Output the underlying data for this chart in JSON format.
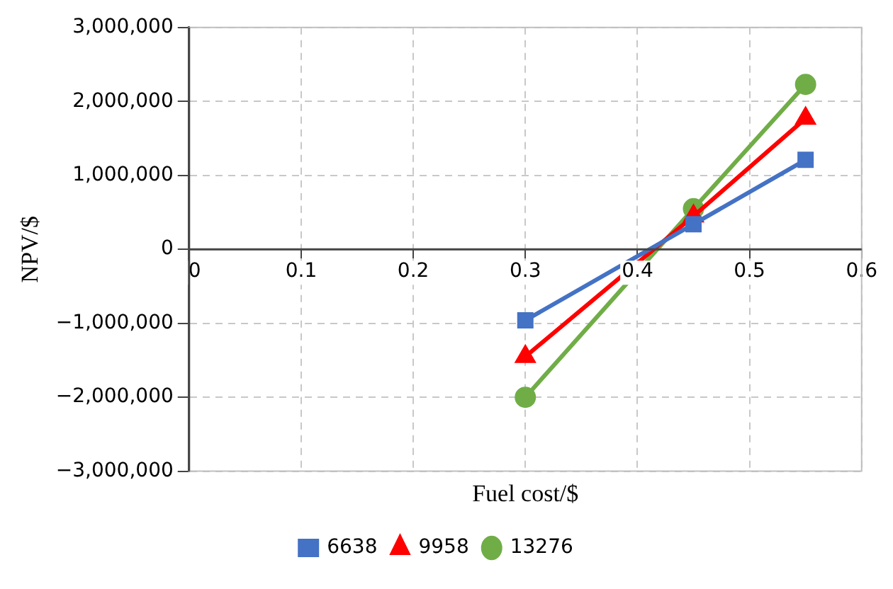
{
  "chart_data": {
    "type": "line",
    "xlabel": "Fuel cost/$",
    "ylabel": "NPV/$",
    "x": [
      0.3,
      0.45,
      0.55
    ],
    "series": [
      {
        "name": "6638",
        "color": "#4472c4",
        "marker": "square",
        "values": [
          -960000,
          340000,
          1210000
        ]
      },
      {
        "name": "9958",
        "color": "#ff0000",
        "marker": "triangle",
        "values": [
          -1450000,
          450000,
          1770000
        ]
      },
      {
        "name": "13276",
        "color": "#70ad47",
        "marker": "circle",
        "values": [
          -2000000,
          550000,
          2230000
        ]
      }
    ],
    "xlim": [
      0,
      0.6
    ],
    "xticks": [
      0,
      0.1,
      0.2,
      0.3,
      0.4,
      0.5,
      0.6
    ],
    "ylim": [
      -3000000,
      3000000
    ],
    "yticks": [
      {
        "value": -3000000,
        "label": "−3,000,000"
      },
      {
        "value": -2000000,
        "label": "−2,000,000"
      },
      {
        "value": -1000000,
        "label": "−1,000,000"
      },
      {
        "value": 0,
        "label": "0"
      },
      {
        "value": 1000000,
        "label": "1,000,000"
      },
      {
        "value": 2000000,
        "label": "2,000,000"
      },
      {
        "value": 3000000,
        "label": "3,000,000"
      }
    ],
    "grid": true,
    "legend": "bottom",
    "line_style": "solid"
  }
}
